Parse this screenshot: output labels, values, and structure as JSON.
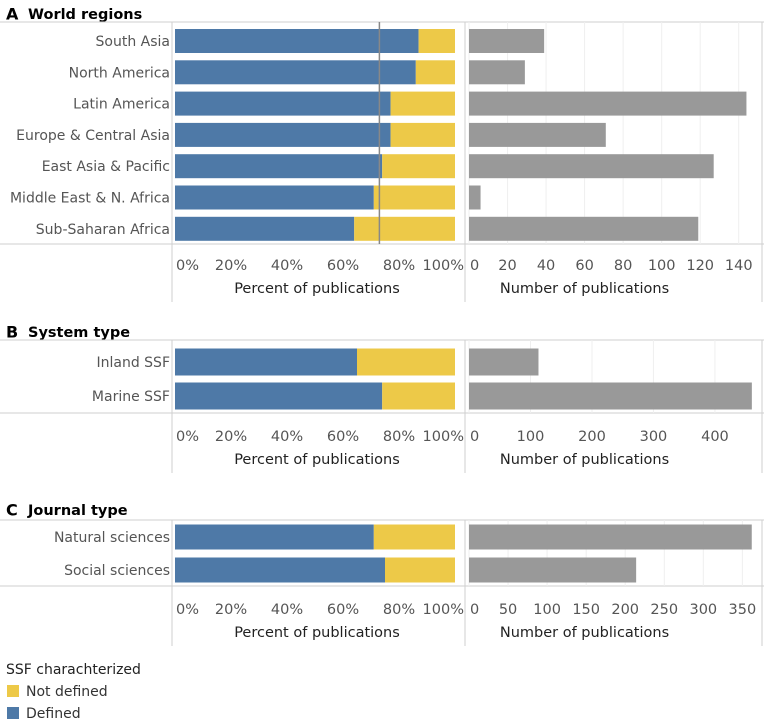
{
  "chart_data": [
    {
      "type": "bar",
      "letter": "A",
      "title": "World regions",
      "categories": [
        "South Asia",
        "North America",
        "Latin America",
        "Europe & Central Asia",
        "East Asia & Pacific",
        "Middle East & N. Africa",
        "Sub-Saharan Africa"
      ],
      "percent": {
        "series": [
          {
            "name": "Defined",
            "values": [
              87,
              86,
              77,
              77,
              74,
              71,
              64
            ]
          },
          {
            "name": "Not defined",
            "values": [
              13,
              14,
              23,
              23,
              26,
              29,
              36
            ]
          }
        ],
        "ticks": [
          "0%",
          "20%",
          "40%",
          "60%",
          "80%",
          "100%"
        ],
        "xlim": [
          0,
          100
        ],
        "reference_line": 73,
        "xlabel": "Percent of publications"
      },
      "count": {
        "values": [
          39,
          29,
          144,
          71,
          127,
          6,
          119
        ],
        "ticks": [
          "0",
          "20",
          "40",
          "60",
          "80",
          "100",
          "120",
          "140"
        ],
        "xlim": [
          0,
          150
        ],
        "xlabel": "Number of publications"
      }
    },
    {
      "type": "bar",
      "letter": "B",
      "title": "System type",
      "categories": [
        "Inland SSF",
        "Marine SSF"
      ],
      "percent": {
        "series": [
          {
            "name": "Defined",
            "values": [
              65,
              74
            ]
          },
          {
            "name": "Not defined",
            "values": [
              35,
              26
            ]
          }
        ],
        "ticks": [
          "0%",
          "20%",
          "40%",
          "60%",
          "80%",
          "100%"
        ],
        "xlim": [
          0,
          100
        ],
        "xlabel": "Percent of publications"
      },
      "count": {
        "values": [
          113,
          460
        ],
        "ticks": [
          "0",
          "100",
          "200",
          "300",
          "400"
        ],
        "xlim": [
          0,
          470
        ],
        "xlabel": "Number of publications"
      }
    },
    {
      "type": "bar",
      "letter": "C",
      "title": "Journal type",
      "categories": [
        "Natural sciences",
        "Social sciences"
      ],
      "percent": {
        "series": [
          {
            "name": "Defined",
            "values": [
              71,
              75
            ]
          },
          {
            "name": "Not defined",
            "values": [
              29,
              25
            ]
          }
        ],
        "ticks": [
          "0%",
          "20%",
          "40%",
          "60%",
          "80%",
          "100%"
        ],
        "xlim": [
          0,
          100
        ],
        "xlabel": "Percent of publications"
      },
      "count": {
        "values": [
          362,
          214
        ],
        "ticks": [
          "0",
          "50",
          "100",
          "150",
          "200",
          "250",
          "300",
          "350"
        ],
        "xlim": [
          0,
          370
        ],
        "xlabel": "Number of publications"
      }
    }
  ],
  "legend": {
    "title": "SSF charachterized",
    "items": [
      {
        "label": "Not defined",
        "color": "#EDC948"
      },
      {
        "label": "Defined",
        "color": "#4E79A7"
      }
    ]
  },
  "colors": {
    "defined": "#4E79A7",
    "not_defined": "#EDC948",
    "count": "#999999",
    "reference_line": "#888888"
  }
}
